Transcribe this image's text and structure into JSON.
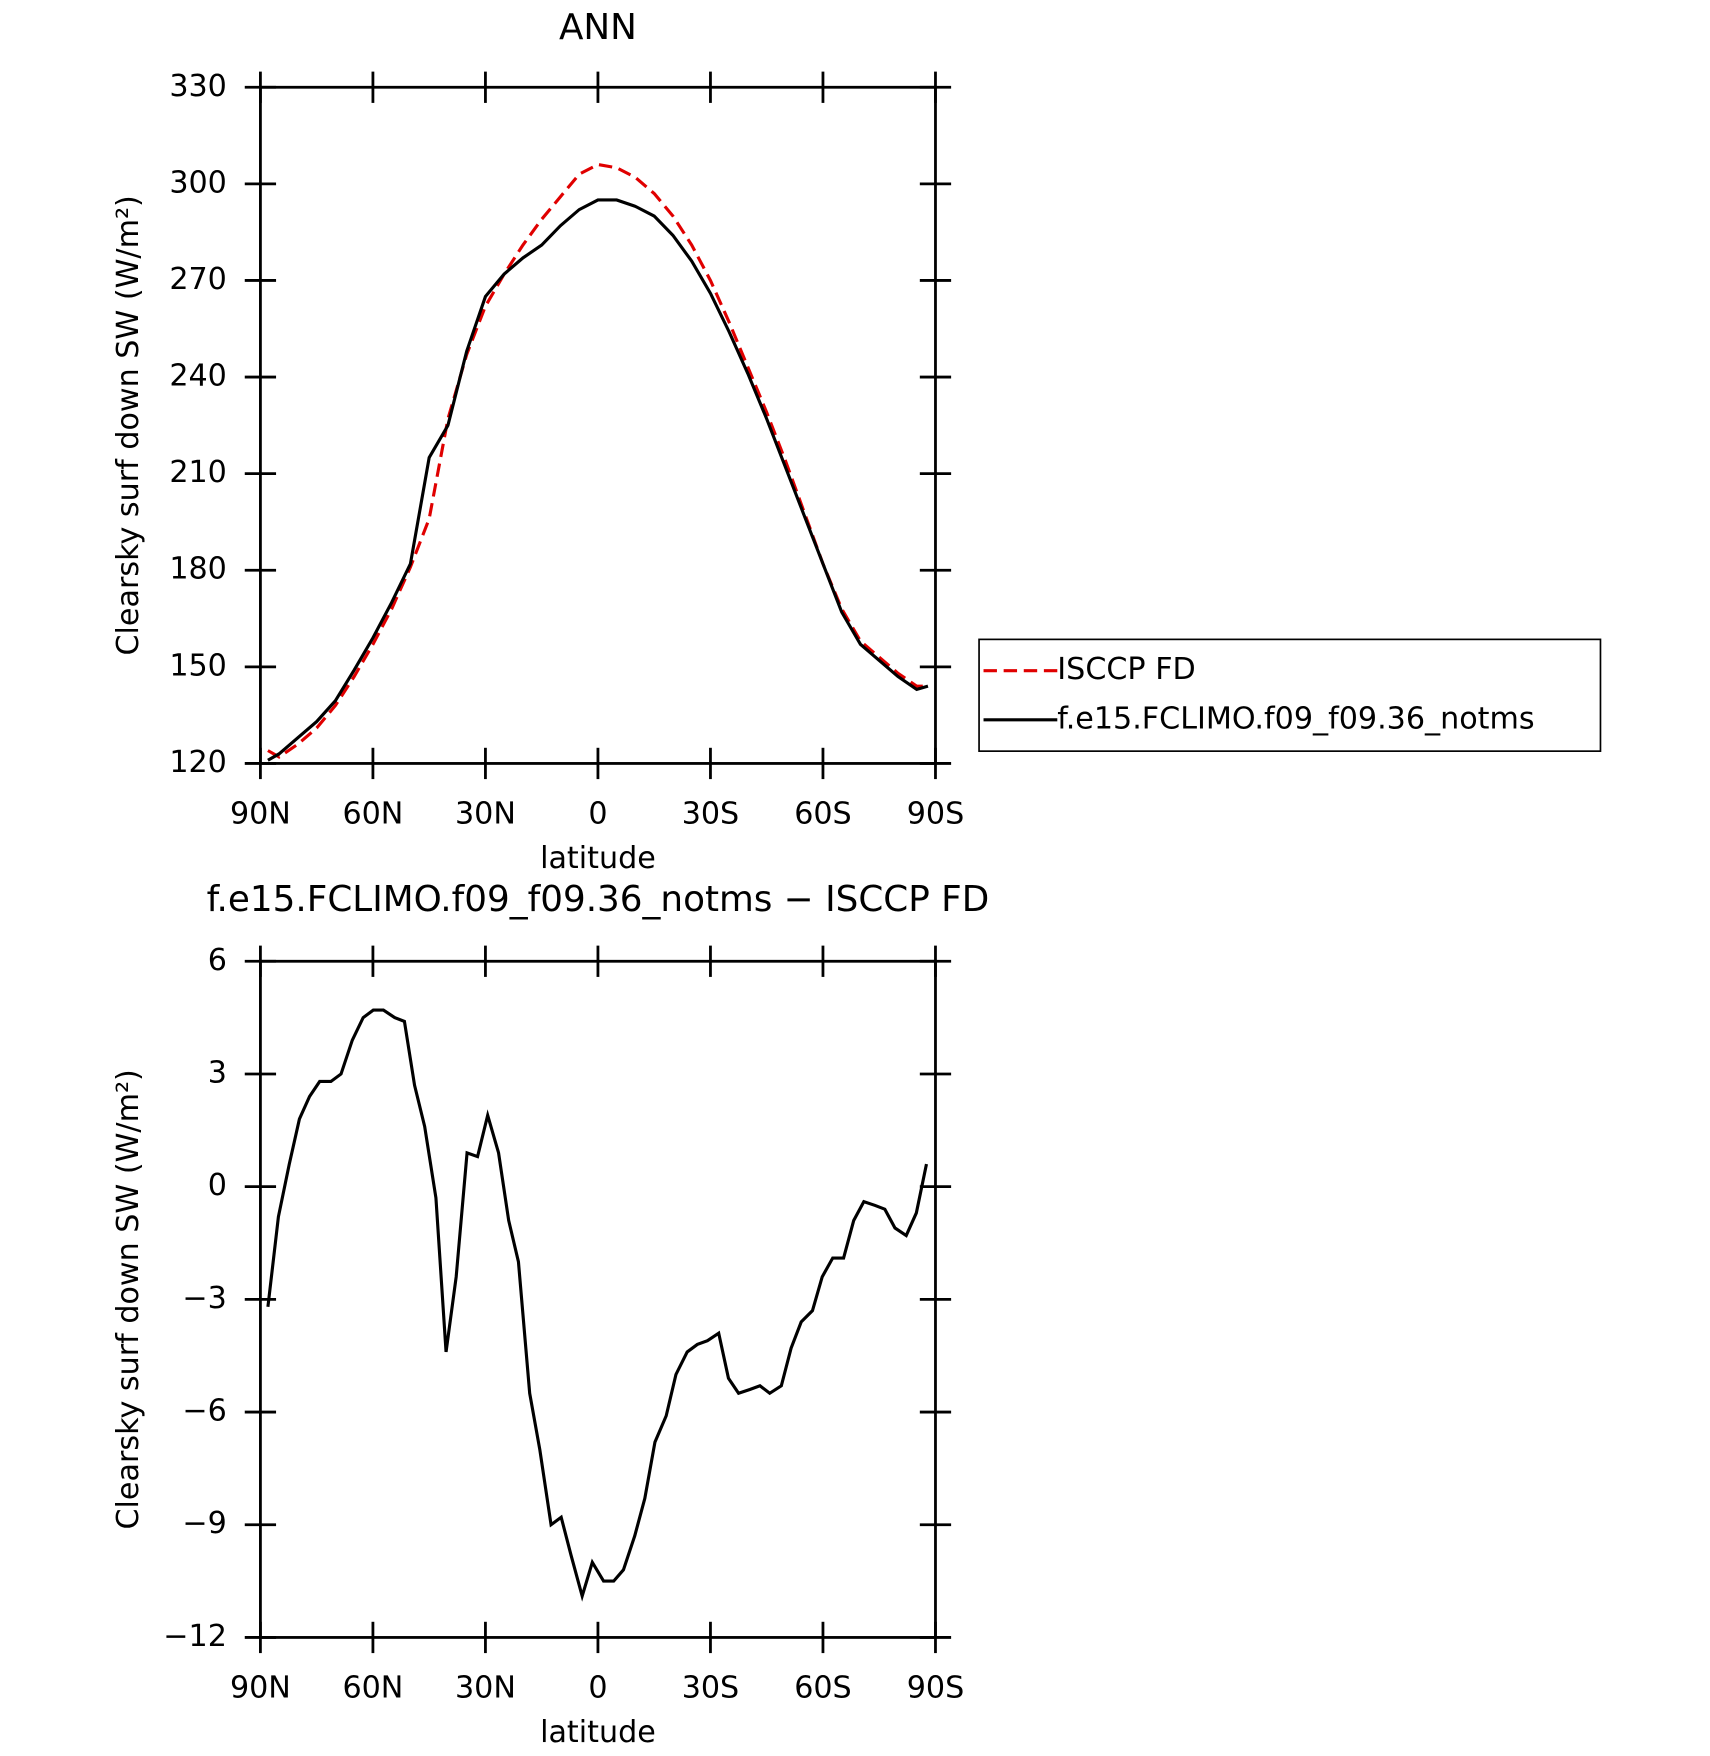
{
  "chart_data": [
    {
      "type": "line",
      "title": "ANN",
      "xlabel": "latitude",
      "ylabel": "Clearsky surf down SW (W/m²)",
      "x": [
        88,
        85,
        80,
        75,
        70,
        65,
        60,
        55,
        50,
        45,
        40,
        35,
        30,
        25,
        20,
        15,
        10,
        5,
        0,
        -5,
        -10,
        -15,
        -20,
        -25,
        -30,
        -35,
        -40,
        -45,
        -50,
        -55,
        -60,
        -65,
        -70,
        -75,
        -80,
        -85,
        -88
      ],
      "series": [
        {
          "name": "ISCCP FD",
          "color": "#e00000",
          "dashed": true,
          "values": [
            124,
            122,
            126,
            131,
            138,
            147,
            157,
            168,
            181,
            196,
            227,
            247,
            262,
            272,
            281,
            289,
            296,
            303,
            306,
            305,
            302,
            297,
            290,
            281,
            270,
            257,
            243,
            229,
            214,
            198,
            182,
            168,
            158,
            153,
            148,
            144,
            144
          ]
        },
        {
          "name": "f.e15.FCLIMO.f09_f09.36_notms",
          "color": "#000000",
          "dashed": false,
          "values": [
            121,
            123,
            128,
            133,
            139.5,
            149,
            159,
            170,
            182,
            215,
            225,
            248,
            265,
            272,
            277,
            281,
            287,
            292,
            295,
            295,
            293,
            290,
            284,
            276,
            266,
            254,
            241,
            227,
            212,
            197,
            182,
            167,
            157,
            152,
            147,
            143,
            144
          ]
        }
      ],
      "xlim": [
        90,
        -90
      ],
      "xticks": [
        {
          "value": 90,
          "label": "90N"
        },
        {
          "value": 60,
          "label": "60N"
        },
        {
          "value": 30,
          "label": "30N"
        },
        0,
        {
          "value": -30,
          "label": "30S"
        },
        {
          "value": -60,
          "label": "60S"
        },
        {
          "value": -90,
          "label": "90S"
        }
      ],
      "ylim": [
        120,
        330
      ],
      "yticks": [
        120,
        150,
        180,
        210,
        240,
        270,
        300,
        330
      ],
      "legend": "right"
    },
    {
      "type": "line",
      "title": "f.e15.FCLIMO.f09_f09.36_notms − ISCCP FD",
      "xlabel": "latitude",
      "ylabel": "Clearsky surf down SW (W/m²)",
      "x": [
        88,
        85.2,
        82.3,
        79.6,
        76.9,
        74.2,
        71.2,
        68.5,
        65.5,
        62.6,
        59.9,
        57.2,
        54.2,
        51.6,
        48.9,
        46.2,
        43.2,
        40.5,
        37.8,
        34.9,
        32.1,
        29.4,
        26.5,
        23.8,
        21.2,
        18.2,
        15.5,
        12.5,
        9.8,
        7.2,
        4.2,
        1.5,
        -1.5,
        -4.2,
        -6.8,
        -9.8,
        -12.5,
        -15.2,
        -18.2,
        -20.8,
        -23.8,
        -26.5,
        -29.2,
        -32.2,
        -34.8,
        -37.5,
        -40.5,
        -43.2,
        -45.8,
        -48.9,
        -51.5,
        -54.2,
        -57.2,
        -59.8,
        -62.6,
        -65.5,
        -68.2,
        -70.9,
        -73.9,
        -76.5,
        -79.2,
        -82.2,
        -84.9,
        -87.6
      ],
      "values": [
        -3.2,
        -0.8,
        0.6,
        1.8,
        2.4,
        2.8,
        2.8,
        3.0,
        3.9,
        4.5,
        4.7,
        4.7,
        4.5,
        4.4,
        2.7,
        1.6,
        -0.3,
        -4.4,
        -2.4,
        0.9,
        0.8,
        1.9,
        0.9,
        -0.9,
        -2.0,
        -5.5,
        -7.0,
        -9.0,
        -8.8,
        -9.8,
        -10.9,
        -10.0,
        -10.5,
        -10.5,
        -10.2,
        -9.3,
        -8.3,
        -6.8,
        -6.1,
        -5.0,
        -4.4,
        -4.2,
        -4.1,
        -3.9,
        -5.1,
        -5.5,
        -5.4,
        -5.3,
        -5.5,
        -5.3,
        -4.3,
        -3.6,
        -3.3,
        -2.4,
        -1.9,
        -1.9,
        -0.9,
        -0.4,
        -0.5,
        -0.6,
        -1.1,
        -1.3,
        -0.7,
        0.6
      ],
      "color": "#000000",
      "xlim": [
        90,
        -90
      ],
      "xticks": [
        {
          "value": 90,
          "label": "90N"
        },
        {
          "value": 60,
          "label": "60N"
        },
        {
          "value": 30,
          "label": "30N"
        },
        0,
        {
          "value": -30,
          "label": "30S"
        },
        {
          "value": -60,
          "label": "60S"
        },
        {
          "value": -90,
          "label": "90S"
        }
      ],
      "ylim": [
        -12,
        6
      ],
      "yticks": [
        {
          "value": -12,
          "label": "−12"
        },
        {
          "value": -9,
          "label": "−9"
        },
        {
          "value": -6,
          "label": "−6"
        },
        {
          "value": -3,
          "label": "−3"
        },
        0,
        3,
        6
      ]
    }
  ]
}
